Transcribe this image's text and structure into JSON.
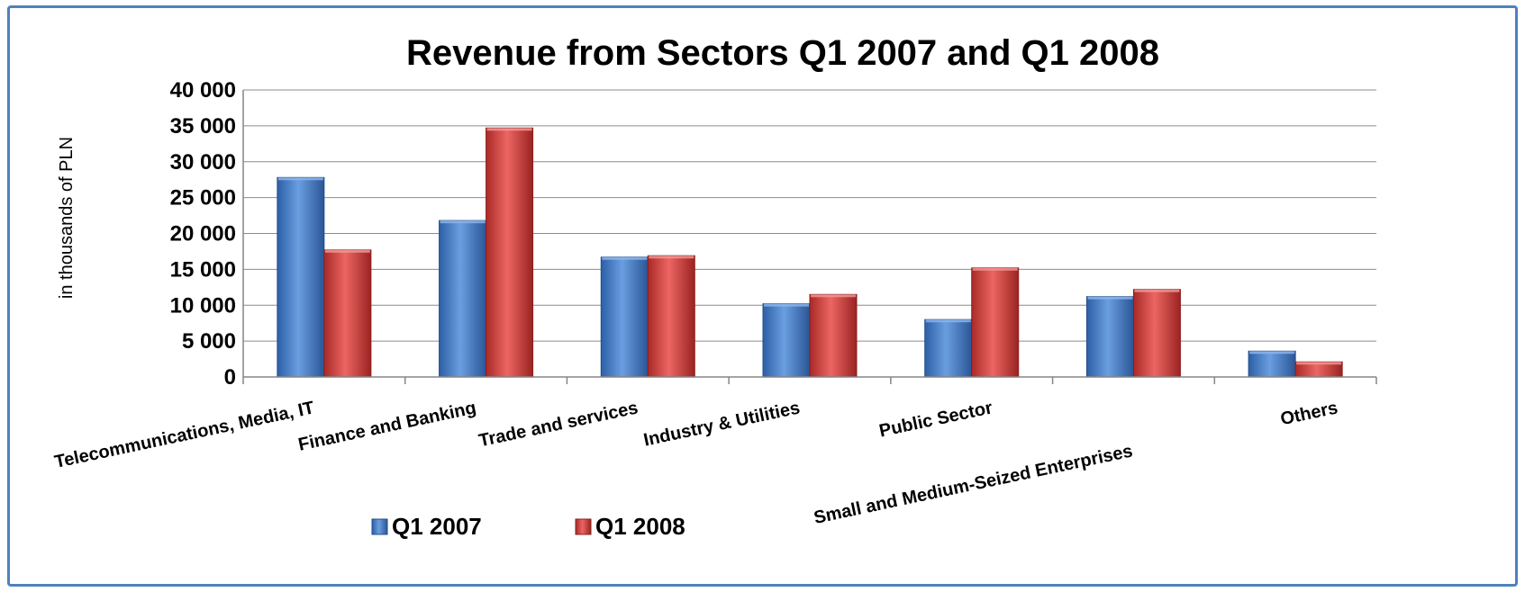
{
  "chart_data": {
    "type": "bar",
    "title": "Revenue from Sectors Q1 2007 and Q1 2008",
    "xlabel": "",
    "ylabel": "in thousands of PLN",
    "ylim": [
      0,
      40000
    ],
    "yticks": [
      0,
      5000,
      10000,
      15000,
      20000,
      25000,
      30000,
      35000,
      40000
    ],
    "ytick_labels": [
      "0",
      "5 000",
      "10 000",
      "15 000",
      "20 000",
      "25 000",
      "30 000",
      "35 000",
      "40 000"
    ],
    "grid": true,
    "legend_position": "bottom",
    "categories": [
      "Telecommunications, Media, IT",
      "Finance and Banking",
      "Trade and services",
      "Industry & Utilities",
      "Public Sector",
      "Small and Medium-Seized Enterprises",
      "Others"
    ],
    "series": [
      {
        "name": "Q1 2007",
        "color": "#4a7fc9",
        "values": [
          27800,
          21800,
          16700,
          10200,
          8000,
          11200,
          3600
        ]
      },
      {
        "name": "Q1 2008",
        "color": "#d23f3c",
        "values": [
          17700,
          34700,
          16900,
          11500,
          15200,
          12200,
          2100
        ]
      }
    ]
  }
}
